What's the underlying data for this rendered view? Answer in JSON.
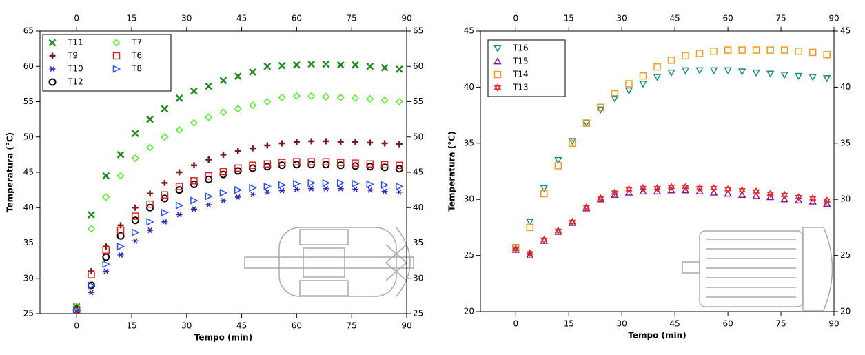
{
  "chart_data": [
    {
      "type": "scatter",
      "xlabel": "Tempo (min)",
      "ylabel": "Temperatura (°C)",
      "x": [
        0,
        4,
        8,
        12,
        16,
        20,
        24,
        28,
        32,
        36,
        40,
        44,
        48,
        52,
        56,
        60,
        64,
        68,
        72,
        76,
        80,
        84,
        88
      ],
      "xlim": [
        -10,
        90
      ],
      "xticks": [
        0,
        15,
        30,
        45,
        60,
        75,
        90
      ],
      "ylim": [
        25,
        65
      ],
      "yticks": [
        25,
        30,
        35,
        40,
        45,
        50,
        55,
        60,
        65
      ],
      "legend": "upper left",
      "series": [
        {
          "name": "T11",
          "color": "#1f8a1f",
          "marker": "x",
          "values": [
            26,
            39,
            44.5,
            47.5,
            50.5,
            52.5,
            54,
            55.5,
            56.5,
            57.2,
            58,
            58.6,
            59.2,
            60,
            60.1,
            60.2,
            60.3,
            60.3,
            60.2,
            60.2,
            60,
            59.8,
            59.6
          ]
        },
        {
          "name": "T9",
          "color": "#7b1a1a",
          "marker": "plus",
          "values": [
            26,
            31,
            34.5,
            37.5,
            40,
            42,
            43.5,
            45,
            46,
            46.8,
            47.5,
            48,
            48.4,
            48.8,
            49.1,
            49.3,
            49.4,
            49.4,
            49.3,
            49.3,
            49.2,
            49.1,
            49
          ]
        },
        {
          "name": "T10",
          "color": "#2a2ab8",
          "marker": "asterisk",
          "values": [
            25.5,
            28,
            31,
            33.3,
            35.3,
            36.8,
            38,
            39,
            39.8,
            40.4,
            41,
            41.5,
            41.9,
            42.2,
            42.4,
            42.6,
            42.7,
            42.7,
            42.7,
            42.6,
            42.5,
            42.3,
            42.2
          ]
        },
        {
          "name": "T12",
          "color": "#000000",
          "marker": "circle",
          "values": [
            25.5,
            29,
            33,
            36,
            38.2,
            40,
            41.3,
            42.5,
            43.3,
            44,
            44.7,
            45.2,
            45.6,
            45.8,
            46,
            46.1,
            46.1,
            46.1,
            46,
            45.9,
            45.8,
            45.7,
            45.5
          ]
        },
        {
          "name": "T7",
          "color": "#55e82a",
          "marker": "diamond",
          "values": [
            26,
            37,
            41.5,
            44.5,
            47,
            48.5,
            50,
            51,
            52,
            52.8,
            53.5,
            54,
            54.5,
            55,
            55.6,
            55.8,
            55.8,
            55.7,
            55.6,
            55.5,
            55.4,
            55.2,
            55
          ]
        },
        {
          "name": "T6",
          "color": "#e02020",
          "marker": "square",
          "values": [
            25.5,
            30.5,
            34,
            36.8,
            38.8,
            40.5,
            41.8,
            43,
            43.8,
            44.5,
            45.1,
            45.6,
            46,
            46.2,
            46.4,
            46.5,
            46.5,
            46.5,
            46.4,
            46.3,
            46.2,
            46.1,
            46
          ]
        },
        {
          "name": "T8",
          "color": "#3050f0",
          "marker": "triangle-right",
          "values": [
            25.5,
            29,
            32,
            34.5,
            36.5,
            38,
            39.3,
            40.3,
            41,
            41.6,
            42.1,
            42.5,
            42.8,
            43,
            43.2,
            43.4,
            43.5,
            43.5,
            43.5,
            43.4,
            43.3,
            43.2,
            43
          ]
        }
      ]
    },
    {
      "type": "scatter",
      "xlabel": "Tempo (min)",
      "ylabel": "Temperatura (°C)",
      "x": [
        0,
        4,
        8,
        12,
        16,
        20,
        24,
        28,
        32,
        36,
        40,
        44,
        48,
        52,
        56,
        60,
        64,
        68,
        72,
        76,
        80,
        84,
        88
      ],
      "xlim": [
        -10,
        90
      ],
      "xticks": [
        0,
        15,
        30,
        45,
        60,
        75,
        90
      ],
      "ylim": [
        20,
        45
      ],
      "yticks": [
        20,
        25,
        30,
        35,
        40,
        45
      ],
      "legend": "upper left",
      "series": [
        {
          "name": "T16",
          "color": "#1a8a8a",
          "marker": "triangle-down",
          "values": [
            25.7,
            28,
            31,
            33.5,
            35.2,
            36.8,
            38,
            39,
            39.7,
            40.3,
            40.9,
            41.3,
            41.5,
            41.5,
            41.5,
            41.5,
            41.4,
            41.3,
            41.2,
            41.1,
            41,
            40.9,
            40.8
          ]
        },
        {
          "name": "T15",
          "color": "#8b1a8b",
          "marker": "triangle-up",
          "values": [
            25.5,
            25,
            26.3,
            27.1,
            27.9,
            29.2,
            30,
            30.4,
            30.6,
            30.7,
            30.7,
            30.8,
            30.8,
            30.7,
            30.6,
            30.5,
            30.4,
            30.3,
            30.2,
            30,
            29.9,
            29.8,
            29.6
          ]
        },
        {
          "name": "T14",
          "color": "#f39a25",
          "marker": "square",
          "values": [
            25.7,
            27.5,
            30.5,
            33,
            35,
            36.8,
            38.2,
            39.4,
            40.3,
            41,
            41.8,
            42.4,
            42.8,
            43,
            43.2,
            43.3,
            43.3,
            43.3,
            43.3,
            43.3,
            43.2,
            43.1,
            42.9
          ]
        },
        {
          "name": "T13",
          "color": "#e03030",
          "marker": "star",
          "values": [
            25.6,
            25.2,
            26.4,
            27.2,
            28,
            29.3,
            30.1,
            30.6,
            30.9,
            31,
            31,
            31.1,
            31.1,
            31,
            31,
            30.9,
            30.8,
            30.7,
            30.5,
            30.4,
            30.2,
            30.1,
            29.9
          ]
        }
      ]
    }
  ]
}
